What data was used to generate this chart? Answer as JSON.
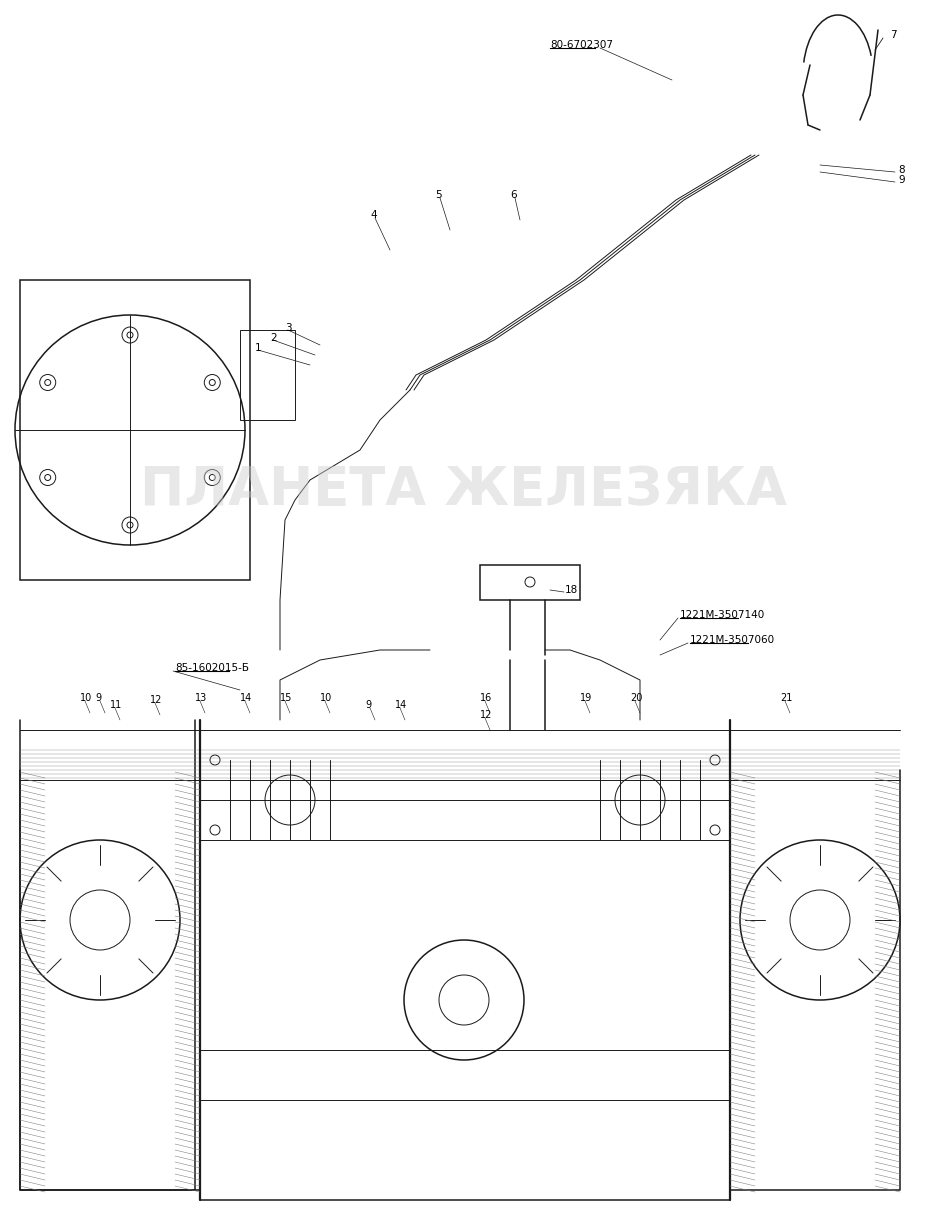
{
  "title": "",
  "background_color": "#ffffff",
  "line_color": "#1a1a1a",
  "watermark_text": "ПЛАНЕТА ЖЕЛЕЗЯКА",
  "watermark_color": "#cccccc",
  "watermark_alpha": 0.45,
  "label_80_6702307": "80-6702307",
  "label_1221M_3507140": "1221М-3507140",
  "label_1221M_3507060": "1221М-3507060",
  "label_85_1602015": "85-1602015-Б",
  "fig_width": 9.28,
  "fig_height": 12.11,
  "dpi": 100
}
